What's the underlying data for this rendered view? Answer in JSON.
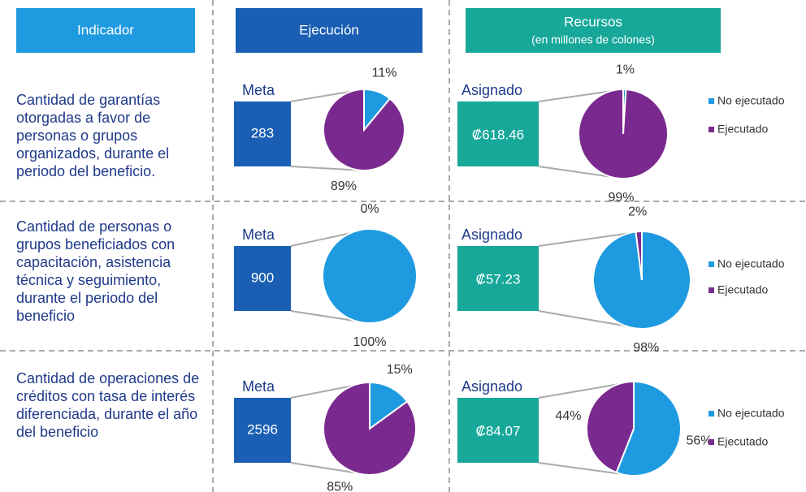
{
  "header": {
    "indicador": "Indicador",
    "ejecucion": "Ejecución",
    "recursos": "Recursos",
    "recursos_sub": "(en millones de colones)"
  },
  "rows": [
    {
      "indicator": "Cantidad de garantías otorgadas a favor de personas o grupos organizados, durante el periodo del beneficio.",
      "meta_label": "Meta",
      "meta_value": 283,
      "asignado_label": "Asignado",
      "asignado_value": "₡618.46",
      "ejecucion": {
        "type": "pie",
        "values": [
          11,
          89
        ],
        "value_labels": [
          "11%",
          "89%"
        ],
        "colors": [
          "#1e9be0",
          "#7a2a8e"
        ]
      },
      "recursos": {
        "type": "pie",
        "categories": [
          "No ejecutado",
          "Ejecutado"
        ],
        "values": [
          1,
          99
        ],
        "value_labels": [
          "1%",
          "99%"
        ],
        "colors": [
          "#1e9be0",
          "#7a2a8e"
        ]
      }
    },
    {
      "indicator": "Cantidad de personas o grupos beneficiados con capacitación, asistencia técnica y seguimiento, durante el periodo del beneficio",
      "meta_label": "Meta",
      "meta_value": 900,
      "asignado_label": "Asignado",
      "asignado_value": "₡57.23",
      "ejecucion": {
        "type": "pie",
        "values": [
          0,
          100
        ],
        "value_labels": [
          "0%",
          "100%"
        ],
        "colors": [
          "#7a2a8e",
          "#1e9be0"
        ]
      },
      "recursos": {
        "type": "pie",
        "categories": [
          "No ejecutado",
          "Ejecutado"
        ],
        "values": [
          98,
          2
        ],
        "value_labels": [
          "98%",
          "2%"
        ],
        "colors": [
          "#1e9be0",
          "#7a2a8e"
        ]
      }
    },
    {
      "indicator": "Cantidad de operaciones de créditos con tasa de interés diferenciada, durante el año del beneficio",
      "meta_label": "Meta",
      "meta_value": 2596,
      "asignado_label": "Asignado",
      "asignado_value": "₡84.07",
      "ejecucion": {
        "type": "pie",
        "values": [
          15,
          85
        ],
        "value_labels": [
          "15%",
          "85%"
        ],
        "colors": [
          "#1e9be0",
          "#7a2a8e"
        ]
      },
      "recursos": {
        "type": "pie",
        "categories": [
          "No ejecutado",
          "Ejecutado"
        ],
        "values": [
          56,
          44
        ],
        "value_labels": [
          "56%",
          "44%"
        ],
        "colors": [
          "#1e9be0",
          "#7a2a8e"
        ]
      }
    }
  ]
}
